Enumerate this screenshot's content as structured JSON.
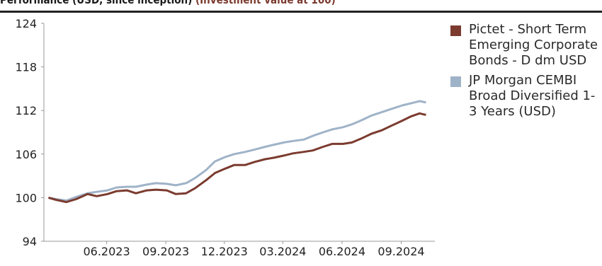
{
  "header_text": {
    "prefix": "Performance (USD, since inception)",
    "accent": "(Investment value at 100)"
  },
  "chart_data": {
    "type": "line",
    "title": "",
    "xlabel": "",
    "ylabel": "",
    "ylim": [
      94,
      124
    ],
    "y_ticks": [
      94,
      100,
      106,
      112,
      118,
      124
    ],
    "x_tick_labels": [
      "06.2023",
      "09.2023",
      "12.2023",
      "03.2024",
      "06.2024",
      "09.2024"
    ],
    "x_range": [
      "2023-03",
      "2024-09"
    ],
    "legend_position": "right",
    "series": [
      {
        "name": "Pictet - Short Term Emerging Corporate Bonds - D dm USD",
        "color": "#7b3b2f",
        "points": [
          [
            "2023-03-08",
            100.0
          ],
          [
            "2023-03-20",
            99.7
          ],
          [
            "2023-04-05",
            99.4
          ],
          [
            "2023-04-20",
            99.8
          ],
          [
            "2023-05-08",
            100.5
          ],
          [
            "2023-05-22",
            100.2
          ],
          [
            "2023-06-08",
            100.5
          ],
          [
            "2023-06-22",
            100.9
          ],
          [
            "2023-07-08",
            101.0
          ],
          [
            "2023-07-22",
            100.6
          ],
          [
            "2023-08-08",
            101.0
          ],
          [
            "2023-08-22",
            101.1
          ],
          [
            "2023-09-08",
            101.0
          ],
          [
            "2023-09-22",
            100.5
          ],
          [
            "2023-10-08",
            100.6
          ],
          [
            "2023-10-22",
            101.3
          ],
          [
            "2023-11-08",
            102.4
          ],
          [
            "2023-11-22",
            103.4
          ],
          [
            "2023-12-08",
            104.0
          ],
          [
            "2023-12-22",
            104.5
          ],
          [
            "2024-01-08",
            104.5
          ],
          [
            "2024-01-22",
            104.9
          ],
          [
            "2024-02-08",
            105.3
          ],
          [
            "2024-02-22",
            105.5
          ],
          [
            "2024-03-08",
            105.8
          ],
          [
            "2024-03-22",
            106.1
          ],
          [
            "2024-04-08",
            106.3
          ],
          [
            "2024-04-22",
            106.5
          ],
          [
            "2024-05-08",
            107.0
          ],
          [
            "2024-05-22",
            107.4
          ],
          [
            "2024-06-08",
            107.4
          ],
          [
            "2024-06-22",
            107.6
          ],
          [
            "2024-07-08",
            108.2
          ],
          [
            "2024-07-22",
            108.8
          ],
          [
            "2024-08-08",
            109.3
          ],
          [
            "2024-08-22",
            109.9
          ],
          [
            "2024-09-08",
            110.6
          ],
          [
            "2024-09-22",
            111.2
          ],
          [
            "2024-10-05",
            111.6
          ],
          [
            "2024-10-15",
            111.4
          ]
        ]
      },
      {
        "name": "JP Morgan CEMBI Broad Diversified 1-3 Years (USD)",
        "color": "#9fb3c8",
        "points": [
          [
            "2023-03-08",
            100.0
          ],
          [
            "2023-03-20",
            99.8
          ],
          [
            "2023-04-05",
            99.6
          ],
          [
            "2023-04-20",
            100.1
          ],
          [
            "2023-05-08",
            100.6
          ],
          [
            "2023-05-22",
            100.8
          ],
          [
            "2023-06-08",
            101.0
          ],
          [
            "2023-06-22",
            101.4
          ],
          [
            "2023-07-08",
            101.5
          ],
          [
            "2023-07-22",
            101.5
          ],
          [
            "2023-08-08",
            101.8
          ],
          [
            "2023-08-22",
            102.0
          ],
          [
            "2023-09-08",
            101.9
          ],
          [
            "2023-09-22",
            101.7
          ],
          [
            "2023-10-08",
            102.0
          ],
          [
            "2023-10-22",
            102.7
          ],
          [
            "2023-11-08",
            103.8
          ],
          [
            "2023-11-22",
            105.0
          ],
          [
            "2023-12-08",
            105.6
          ],
          [
            "2023-12-22",
            106.0
          ],
          [
            "2024-01-08",
            106.3
          ],
          [
            "2024-01-22",
            106.6
          ],
          [
            "2024-02-08",
            107.0
          ],
          [
            "2024-02-22",
            107.3
          ],
          [
            "2024-03-08",
            107.6
          ],
          [
            "2024-03-22",
            107.8
          ],
          [
            "2024-04-08",
            108.0
          ],
          [
            "2024-04-22",
            108.5
          ],
          [
            "2024-05-08",
            109.0
          ],
          [
            "2024-05-22",
            109.4
          ],
          [
            "2024-06-08",
            109.7
          ],
          [
            "2024-06-22",
            110.1
          ],
          [
            "2024-07-08",
            110.7
          ],
          [
            "2024-07-22",
            111.3
          ],
          [
            "2024-08-08",
            111.8
          ],
          [
            "2024-08-22",
            112.2
          ],
          [
            "2024-09-08",
            112.7
          ],
          [
            "2024-09-22",
            113.0
          ],
          [
            "2024-10-05",
            113.3
          ],
          [
            "2024-10-15",
            113.1
          ]
        ]
      }
    ]
  }
}
